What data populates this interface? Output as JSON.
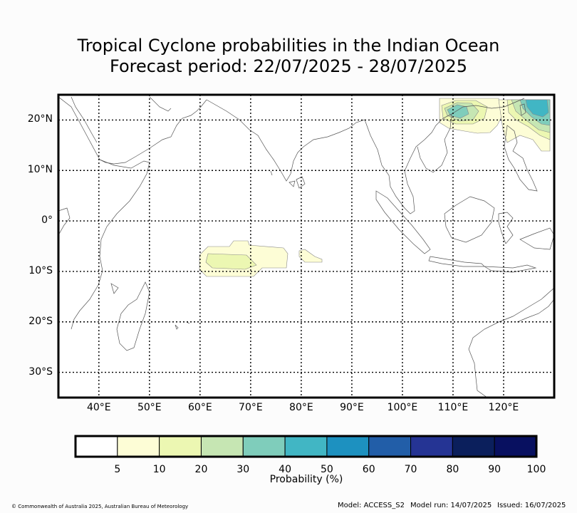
{
  "title_line1": "Tropical Cyclone probabilities in the Indian Ocean",
  "title_line2": "Forecast period: 22/07/2025 - 28/07/2025",
  "map": {
    "lon_range": [
      32,
      130
    ],
    "lat_range": [
      -35,
      25
    ],
    "lon_ticks": [
      {
        "value": 40,
        "label": "40°E"
      },
      {
        "value": 50,
        "label": "50°E"
      },
      {
        "value": 60,
        "label": "60°E"
      },
      {
        "value": 70,
        "label": "70°E"
      },
      {
        "value": 80,
        "label": "80°E"
      },
      {
        "value": 90,
        "label": "90°E"
      },
      {
        "value": 100,
        "label": "100°E"
      },
      {
        "value": 110,
        "label": "110°E"
      },
      {
        "value": 120,
        "label": "120°E"
      }
    ],
    "lat_ticks": [
      {
        "value": 20,
        "label": "20°N"
      },
      {
        "value": 10,
        "label": "10°N"
      },
      {
        "value": 0,
        "label": "0°"
      },
      {
        "value": -10,
        "label": "10°S"
      },
      {
        "value": -20,
        "label": "20°S"
      },
      {
        "value": -30,
        "label": "30°S"
      }
    ],
    "gridlines": true
  },
  "colorbar": {
    "ticks": [
      "5",
      "10",
      "20",
      "30",
      "40",
      "50",
      "60",
      "70",
      "80",
      "90",
      "100"
    ],
    "colors": [
      "#ffffff",
      "#fdfdd6",
      "#ecf7b2",
      "#c6e6b3",
      "#7fcdbb",
      "#41b6c4",
      "#1d91c0",
      "#225ea8",
      "#253494",
      "#0b1f5c",
      "#081060"
    ],
    "label": "Probability (%)"
  },
  "footer": {
    "copyright": "© Commonwealth of Australia 2025, Australian Bureau of Meteorology",
    "model": "Model: ACCESS_S2",
    "model_run": "Model run: 14/07/2025",
    "issued": "Issued: 16/07/2025"
  }
}
